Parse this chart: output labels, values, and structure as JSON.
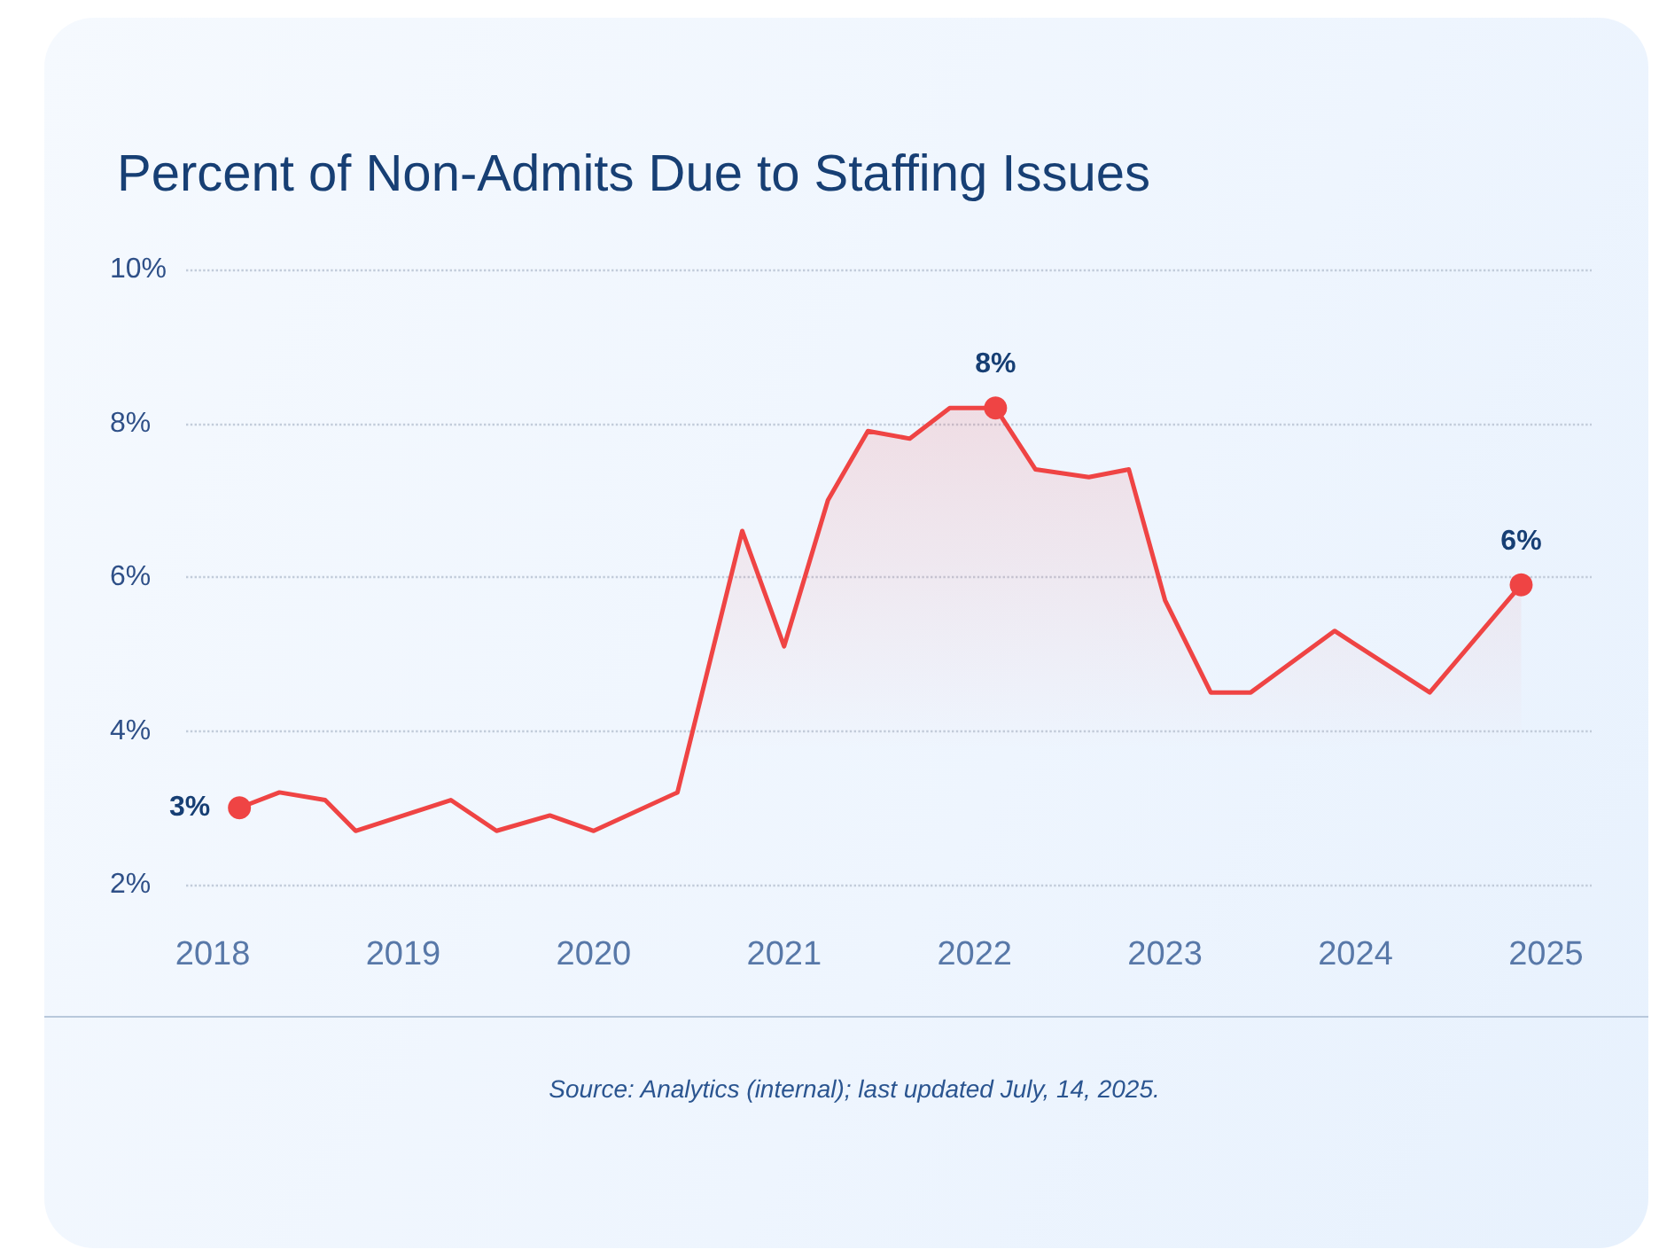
{
  "chart_data": {
    "type": "area",
    "title": "Percent of Non-Admits Due to Staffing Issues",
    "annotations": [
      "Source: Analytics (internal); last updated July, 14, 2025."
    ],
    "xlim": [
      2017.86,
      2025.24
    ],
    "xticks": [
      2018,
      2019,
      2020,
      2021,
      2022,
      2023,
      2024,
      2025
    ],
    "ylim": [
      2,
      10
    ],
    "yticks": [
      {
        "value": 2,
        "label": "2%"
      },
      {
        "value": 4,
        "label": "4%"
      },
      {
        "value": 6,
        "label": "6%"
      },
      {
        "value": 8,
        "label": "8%"
      },
      {
        "value": 10,
        "label": "10%"
      }
    ],
    "grid": "y",
    "series": [
      {
        "color": "#ef4444",
        "marker": "none",
        "x": [
          2018.14,
          2018.35,
          2018.59,
          2018.75,
          2019.25,
          2019.49,
          2019.77,
          2020.0,
          2020.44,
          2020.78,
          2021.0,
          2021.23,
          2021.44,
          2021.66,
          2021.87,
          2022.11,
          2022.32,
          2022.6,
          2022.81,
          2023.0,
          2023.24,
          2023.45,
          2023.89,
          2024.39,
          2024.87
        ],
        "values": [
          3.0,
          3.2,
          3.1,
          2.7,
          3.1,
          2.7,
          2.9,
          2.7,
          3.2,
          6.6,
          5.1,
          7.0,
          7.9,
          7.8,
          8.2,
          8.2,
          7.4,
          7.3,
          7.4,
          5.7,
          4.5,
          4.5,
          5.3,
          4.5,
          5.9
        ]
      },
      {
        "type": "scatter",
        "color": "#ef4444",
        "marker": "circle",
        "x": [
          2018.14,
          2022.11,
          2024.87
        ],
        "values": [
          3.0,
          8.2,
          5.9
        ],
        "value_labels": [
          "3%",
          "8%",
          "6%"
        ]
      }
    ]
  }
}
